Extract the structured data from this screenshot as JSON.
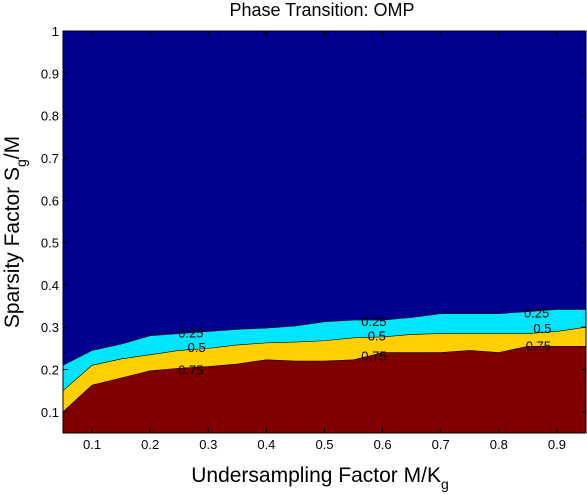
{
  "chart_data": {
    "type": "area",
    "title": "Phase Transition: OMP",
    "xlabel_main": "Undersampling Factor M/K",
    "xlabel_sub": "g",
    "ylabel_main": "Sparsity Factor S",
    "ylabel_sub": "g",
    "ylabel_tail": "/M",
    "xlim": [
      0.05,
      0.95
    ],
    "ylim": [
      0.05,
      1.0
    ],
    "x_ticks": [
      "0.1",
      "0.2",
      "0.3",
      "0.4",
      "0.5",
      "0.6",
      "0.7",
      "0.8",
      "0.9"
    ],
    "y_ticks": [
      "0.1",
      "0.2",
      "0.3",
      "0.4",
      "0.5",
      "0.6",
      "0.7",
      "0.8",
      "0.9",
      "1"
    ],
    "grid": false,
    "x": [
      0.05,
      0.1,
      0.15,
      0.2,
      0.25,
      0.3,
      0.35,
      0.4,
      0.45,
      0.5,
      0.55,
      0.6,
      0.65,
      0.7,
      0.75,
      0.8,
      0.85,
      0.9,
      0.95
    ],
    "contours": [
      {
        "level": "0.25",
        "y": [
          0.21,
          0.245,
          0.26,
          0.28,
          0.285,
          0.29,
          0.295,
          0.298,
          0.303,
          0.313,
          0.317,
          0.317,
          0.323,
          0.332,
          0.332,
          0.332,
          0.337,
          0.342,
          0.342
        ]
      },
      {
        "level": "0.5",
        "y": [
          0.15,
          0.21,
          0.225,
          0.235,
          0.245,
          0.25,
          0.258,
          0.263,
          0.265,
          0.268,
          0.275,
          0.277,
          0.283,
          0.285,
          0.285,
          0.285,
          0.285,
          0.29,
          0.3
        ]
      },
      {
        "level": "0.75",
        "y": [
          0.1,
          0.163,
          0.18,
          0.197,
          0.203,
          0.207,
          0.213,
          0.223,
          0.22,
          0.22,
          0.223,
          0.24,
          0.24,
          0.24,
          0.245,
          0.24,
          0.255,
          0.255,
          0.255
        ]
      }
    ],
    "contour_labels": [
      {
        "text": "0.25",
        "x": 0.27,
        "y": 0.287
      },
      {
        "text": "0.5",
        "x": 0.28,
        "y": 0.253
      },
      {
        "text": "0.75",
        "x": 0.27,
        "y": 0.2
      },
      {
        "text": "0.25",
        "x": 0.585,
        "y": 0.315
      },
      {
        "text": "0.5",
        "x": 0.59,
        "y": 0.28
      },
      {
        "text": "0.75",
        "x": 0.585,
        "y": 0.233
      },
      {
        "text": "0.25",
        "x": 0.865,
        "y": 0.335
      },
      {
        "text": "0.5",
        "x": 0.875,
        "y": 0.298
      },
      {
        "text": "0.75",
        "x": 0.868,
        "y": 0.257
      }
    ],
    "region_colors": {
      "top": "#00008f",
      "band_025": "#00e5ff",
      "band_05": "#ffcf00",
      "bottom": "#800000"
    }
  }
}
